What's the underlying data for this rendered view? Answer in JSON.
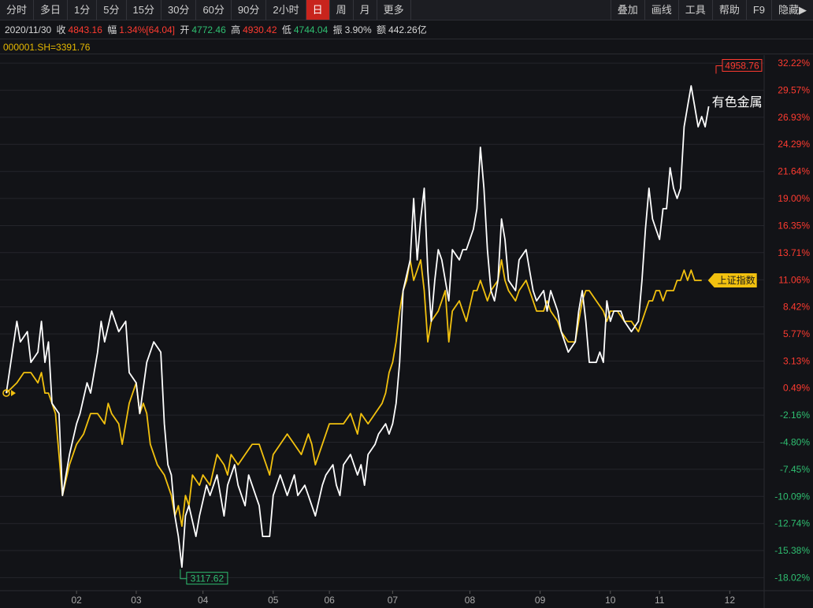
{
  "toolbar": {
    "periods": [
      {
        "label": "分时",
        "active": false
      },
      {
        "label": "多日",
        "active": false
      },
      {
        "label": "1分",
        "active": false
      },
      {
        "label": "5分",
        "active": false
      },
      {
        "label": "15分",
        "active": false
      },
      {
        "label": "30分",
        "active": false
      },
      {
        "label": "60分",
        "active": false
      },
      {
        "label": "90分",
        "active": false
      },
      {
        "label": "2小时",
        "active": false
      },
      {
        "label": "日",
        "active": true
      },
      {
        "label": "周",
        "active": false
      },
      {
        "label": "月",
        "active": false
      },
      {
        "label": "更多",
        "active": false
      }
    ],
    "tools": [
      "叠加",
      "画线",
      "工具",
      "帮助",
      "F9",
      "隐藏▶"
    ]
  },
  "info": {
    "date": "2020/11/30",
    "close_label": "收",
    "close_value": "4843.16",
    "change_label": "幅",
    "change_value": "1.34%[64.04]",
    "open_label": "开",
    "open_value": "4772.46",
    "high_label": "高",
    "high_value": "4930.42",
    "low_label": "低",
    "low_value": "4744.04",
    "amp_label": "振",
    "amp_value": "3.90%",
    "amount_label": "额",
    "amount_value": "442.26亿"
  },
  "overlay_index": "000001.SH=3391.76",
  "colors": {
    "sector_line": "#ffffff",
    "index_line": "#f2c10f",
    "positive": "#ff3b30",
    "negative": "#2fbf71",
    "neutral": "#a8a8a8",
    "max_label": "#ff3b30",
    "min_label": "#2fbf71"
  },
  "chart_data": {
    "type": "line",
    "y_unit": "%",
    "ylim": [
      -19.3,
      33.0
    ],
    "yticks": [
      "32.22%",
      "29.57%",
      "26.93%",
      "24.29%",
      "21.64%",
      "19.00%",
      "16.35%",
      "13.71%",
      "11.06%",
      "8.42%",
      "5.77%",
      "3.13%",
      "0.49%",
      "-2.16%",
      "-4.80%",
      "-7.45%",
      "-10.09%",
      "-12.74%",
      "-15.38%",
      "-18.02%"
    ],
    "ytick_values": [
      32.22,
      29.57,
      26.93,
      24.29,
      21.64,
      19.0,
      16.35,
      13.71,
      11.06,
      8.42,
      5.77,
      3.13,
      0.49,
      -2.16,
      -4.8,
      -7.45,
      -10.09,
      -12.74,
      -15.38,
      -18.02
    ],
    "xticks": [
      {
        "label": "02",
        "x": 20
      },
      {
        "label": "03",
        "x": 37
      },
      {
        "label": "04",
        "x": 56
      },
      {
        "label": "05",
        "x": 76
      },
      {
        "label": "06",
        "x": 92
      },
      {
        "label": "07",
        "x": 110
      },
      {
        "label": "08",
        "x": 132
      },
      {
        "label": "09",
        "x": 152
      },
      {
        "label": "10",
        "x": 172
      },
      {
        "label": "11",
        "x": 186
      },
      {
        "label": "12",
        "x": 206
      }
    ],
    "x_range": [
      0,
      214
    ],
    "max_marker": {
      "label": "4958.76",
      "x": 203,
      "y": 31.5
    },
    "min_marker": {
      "label": "3117.62",
      "x": 50,
      "y": -17.2
    },
    "series": [
      {
        "name": "有色金属",
        "points": [
          [
            0,
            0
          ],
          [
            3,
            7
          ],
          [
            4,
            5
          ],
          [
            6,
            6
          ],
          [
            7,
            3
          ],
          [
            9,
            4
          ],
          [
            10,
            7
          ],
          [
            11,
            3
          ],
          [
            12,
            5
          ],
          [
            13,
            -1
          ],
          [
            15,
            -2
          ],
          [
            16,
            -10
          ],
          [
            18,
            -6
          ],
          [
            20,
            -3
          ],
          [
            21,
            -2
          ],
          [
            23,
            1
          ],
          [
            24,
            0
          ],
          [
            26,
            4
          ],
          [
            27,
            7
          ],
          [
            28,
            5
          ],
          [
            30,
            8
          ],
          [
            32,
            6
          ],
          [
            34,
            7
          ],
          [
            35,
            2
          ],
          [
            37,
            1
          ],
          [
            38,
            -2
          ],
          [
            40,
            3
          ],
          [
            42,
            5
          ],
          [
            44,
            4
          ],
          [
            45,
            -3
          ],
          [
            46,
            -7
          ],
          [
            47,
            -8
          ],
          [
            48,
            -12
          ],
          [
            49,
            -14
          ],
          [
            50,
            -17
          ],
          [
            51,
            -12
          ],
          [
            52,
            -11
          ],
          [
            54,
            -14
          ],
          [
            55,
            -12
          ],
          [
            57,
            -9
          ],
          [
            58,
            -10
          ],
          [
            60,
            -8
          ],
          [
            62,
            -12
          ],
          [
            63,
            -9
          ],
          [
            65,
            -7
          ],
          [
            66,
            -9
          ],
          [
            68,
            -11
          ],
          [
            69,
            -8
          ],
          [
            70,
            -9
          ],
          [
            72,
            -11
          ],
          [
            73,
            -14
          ],
          [
            75,
            -14
          ],
          [
            76,
            -10
          ],
          [
            78,
            -8
          ],
          [
            79,
            -9
          ],
          [
            80,
            -10
          ],
          [
            82,
            -8
          ],
          [
            83,
            -10
          ],
          [
            85,
            -9
          ],
          [
            86,
            -10
          ],
          [
            88,
            -12
          ],
          [
            90,
            -9
          ],
          [
            91,
            -8
          ],
          [
            93,
            -7
          ],
          [
            94,
            -9
          ],
          [
            95,
            -10
          ],
          [
            96,
            -7
          ],
          [
            98,
            -6
          ],
          [
            100,
            -8
          ],
          [
            101,
            -7
          ],
          [
            102,
            -9
          ],
          [
            103,
            -6
          ],
          [
            105,
            -5
          ],
          [
            106,
            -4
          ],
          [
            108,
            -3
          ],
          [
            109,
            -4
          ],
          [
            110,
            -3
          ],
          [
            111,
            -1
          ],
          [
            112,
            3
          ],
          [
            113,
            10
          ],
          [
            115,
            13
          ],
          [
            116,
            19
          ],
          [
            117,
            13
          ],
          [
            118,
            17
          ],
          [
            119,
            20
          ],
          [
            120,
            12
          ],
          [
            121,
            7
          ],
          [
            122,
            11
          ],
          [
            123,
            14
          ],
          [
            124,
            13
          ],
          [
            126,
            9
          ],
          [
            127,
            14
          ],
          [
            129,
            13
          ],
          [
            130,
            14
          ],
          [
            131,
            14
          ],
          [
            133,
            16
          ],
          [
            134,
            18
          ],
          [
            135,
            24
          ],
          [
            136,
            20
          ],
          [
            137,
            14
          ],
          [
            138,
            10
          ],
          [
            139,
            9
          ],
          [
            140,
            11
          ],
          [
            141,
            17
          ],
          [
            142,
            15
          ],
          [
            143,
            11
          ],
          [
            145,
            10
          ],
          [
            146,
            13
          ],
          [
            148,
            14
          ],
          [
            149,
            12
          ],
          [
            150,
            10
          ],
          [
            151,
            9
          ],
          [
            153,
            10
          ],
          [
            154,
            8
          ],
          [
            155,
            10
          ],
          [
            157,
            8
          ],
          [
            158,
            6
          ],
          [
            160,
            4
          ],
          [
            162,
            5
          ],
          [
            163,
            8
          ],
          [
            164,
            10
          ],
          [
            165,
            7
          ],
          [
            166,
            3
          ],
          [
            168,
            3
          ],
          [
            169,
            4
          ],
          [
            170,
            3
          ],
          [
            171,
            9
          ],
          [
            172,
            7
          ],
          [
            173,
            8
          ],
          [
            175,
            8
          ],
          [
            176,
            7
          ],
          [
            178,
            6
          ],
          [
            180,
            7
          ],
          [
            181,
            11
          ],
          [
            182,
            16
          ],
          [
            183,
            20
          ],
          [
            184,
            17
          ],
          [
            185,
            16
          ],
          [
            186,
            15
          ],
          [
            187,
            18
          ],
          [
            188,
            18
          ],
          [
            189,
            22
          ],
          [
            190,
            20
          ],
          [
            191,
            19
          ],
          [
            192,
            20
          ],
          [
            193,
            26
          ],
          [
            194,
            28
          ],
          [
            195,
            30
          ],
          [
            196,
            28
          ],
          [
            197,
            26
          ],
          [
            198,
            27
          ],
          [
            199,
            26
          ],
          [
            200,
            28
          ]
        ]
      },
      {
        "name": "上证指数",
        "points": [
          [
            0,
            0
          ],
          [
            3,
            1
          ],
          [
            5,
            2
          ],
          [
            7,
            2
          ],
          [
            9,
            1
          ],
          [
            10,
            2
          ],
          [
            11,
            0
          ],
          [
            12,
            0
          ],
          [
            13,
            -1
          ],
          [
            14,
            -2
          ],
          [
            16,
            -10
          ],
          [
            18,
            -7
          ],
          [
            20,
            -5
          ],
          [
            22,
            -4
          ],
          [
            24,
            -2
          ],
          [
            26,
            -2
          ],
          [
            28,
            -3
          ],
          [
            29,
            -1
          ],
          [
            30,
            -2
          ],
          [
            32,
            -3
          ],
          [
            33,
            -5
          ],
          [
            35,
            -1
          ],
          [
            37,
            1
          ],
          [
            38,
            -2
          ],
          [
            39,
            -1
          ],
          [
            40,
            -2
          ],
          [
            41,
            -5
          ],
          [
            43,
            -7
          ],
          [
            45,
            -8
          ],
          [
            47,
            -10
          ],
          [
            48,
            -12
          ],
          [
            49,
            -11
          ],
          [
            50,
            -13
          ],
          [
            51,
            -10
          ],
          [
            52,
            -11
          ],
          [
            53,
            -8
          ],
          [
            55,
            -9
          ],
          [
            56,
            -8
          ],
          [
            58,
            -9
          ],
          [
            60,
            -6
          ],
          [
            62,
            -7
          ],
          [
            63,
            -8
          ],
          [
            64,
            -6
          ],
          [
            66,
            -7
          ],
          [
            68,
            -6
          ],
          [
            70,
            -5
          ],
          [
            72,
            -5
          ],
          [
            73,
            -6
          ],
          [
            74,
            -7
          ],
          [
            75,
            -8
          ],
          [
            76,
            -6
          ],
          [
            78,
            -5
          ],
          [
            80,
            -4
          ],
          [
            82,
            -5
          ],
          [
            84,
            -6
          ],
          [
            86,
            -4
          ],
          [
            87,
            -5
          ],
          [
            88,
            -7
          ],
          [
            90,
            -5
          ],
          [
            92,
            -3
          ],
          [
            94,
            -3
          ],
          [
            96,
            -3
          ],
          [
            98,
            -2
          ],
          [
            100,
            -4
          ],
          [
            101,
            -2
          ],
          [
            103,
            -3
          ],
          [
            105,
            -2
          ],
          [
            107,
            -1
          ],
          [
            108,
            0
          ],
          [
            109,
            2
          ],
          [
            110,
            3
          ],
          [
            111,
            5
          ],
          [
            112,
            8
          ],
          [
            113,
            10
          ],
          [
            114,
            11
          ],
          [
            115,
            13
          ],
          [
            116,
            11
          ],
          [
            117,
            12
          ],
          [
            118,
            13
          ],
          [
            119,
            10
          ],
          [
            120,
            5
          ],
          [
            121,
            7
          ],
          [
            123,
            8
          ],
          [
            124,
            9
          ],
          [
            125,
            10
          ],
          [
            126,
            5
          ],
          [
            127,
            8
          ],
          [
            129,
            9
          ],
          [
            130,
            8
          ],
          [
            131,
            7
          ],
          [
            133,
            10
          ],
          [
            134,
            10
          ],
          [
            135,
            11
          ],
          [
            136,
            10
          ],
          [
            137,
            9
          ],
          [
            138,
            10
          ],
          [
            140,
            11
          ],
          [
            141,
            13
          ],
          [
            142,
            11
          ],
          [
            143,
            10
          ],
          [
            145,
            9
          ],
          [
            146,
            10
          ],
          [
            148,
            11
          ],
          [
            149,
            10
          ],
          [
            150,
            9
          ],
          [
            151,
            8
          ],
          [
            153,
            8
          ],
          [
            154,
            9
          ],
          [
            155,
            8
          ],
          [
            157,
            7
          ],
          [
            158,
            6
          ],
          [
            160,
            5
          ],
          [
            162,
            5
          ],
          [
            163,
            7
          ],
          [
            164,
            9
          ],
          [
            165,
            10
          ],
          [
            166,
            10
          ],
          [
            168,
            9
          ],
          [
            170,
            8
          ],
          [
            171,
            7
          ],
          [
            172,
            8
          ],
          [
            174,
            8
          ],
          [
            176,
            7
          ],
          [
            178,
            7
          ],
          [
            180,
            6
          ],
          [
            181,
            7
          ],
          [
            182,
            8
          ],
          [
            183,
            9
          ],
          [
            184,
            9
          ],
          [
            185,
            10
          ],
          [
            186,
            10
          ],
          [
            187,
            9
          ],
          [
            188,
            10
          ],
          [
            190,
            10
          ],
          [
            191,
            11
          ],
          [
            192,
            11
          ],
          [
            193,
            12
          ],
          [
            194,
            11
          ],
          [
            195,
            12
          ],
          [
            196,
            11
          ],
          [
            198,
            11
          ]
        ]
      }
    ]
  }
}
